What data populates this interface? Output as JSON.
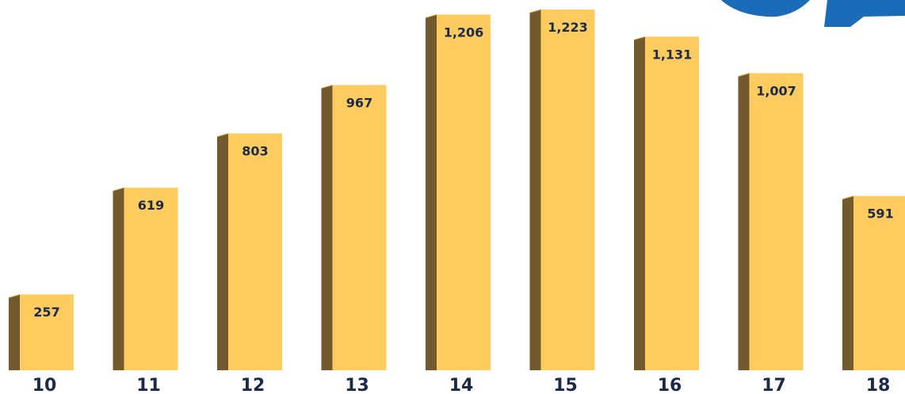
{
  "colors": {
    "bar_face": "#FDCB5E",
    "bar_side": "#725A2E",
    "bar_top": "#E8B956",
    "label_text": "#1B2A4A",
    "accent_blue": "#1A6BB8"
  },
  "chart_data": {
    "type": "bar",
    "title": "",
    "xlabel": "",
    "ylabel": "",
    "categories": [
      "10",
      "11",
      "12",
      "13",
      "14",
      "15",
      "16",
      "17",
      "18"
    ],
    "values": [
      257,
      619,
      803,
      967,
      1206,
      1223,
      1131,
      1007,
      591
    ],
    "value_labels": [
      "257",
      "619",
      "803",
      "967",
      "1,206",
      "1,223",
      "1,131",
      "1,007",
      "591"
    ],
    "ylim": [
      0,
      1223
    ],
    "grid": false,
    "legend": "none"
  }
}
